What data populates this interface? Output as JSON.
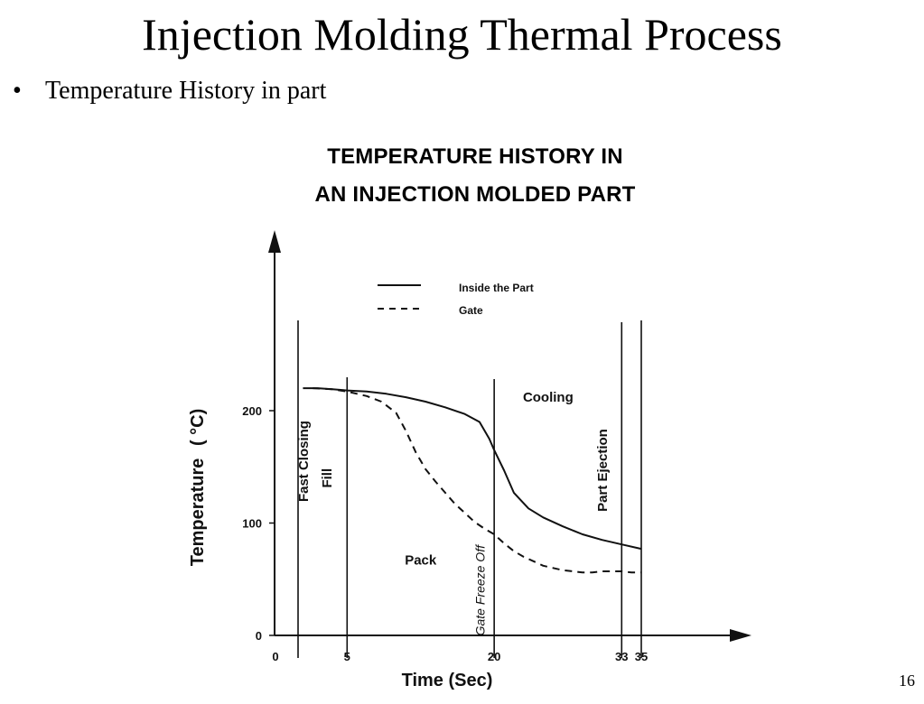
{
  "slide": {
    "title": "Injection Molding Thermal Process",
    "bullet": "Temperature History in part",
    "bullet_symbol": "•",
    "page_number": "16"
  },
  "chart_data": {
    "type": "line",
    "title_line1": "TEMPERATURE HISTORY IN",
    "title_line2": "AN INJECTION MOLDED PART",
    "xlabel": "Time (Sec)",
    "ylabel": "Temperature",
    "ylabel_unit": "( °C)",
    "xlim": [
      0,
      35
    ],
    "ylim": [
      0,
      260
    ],
    "x_ticks": [
      {
        "value": 0,
        "label": "0"
      },
      {
        "value": 5,
        "label": "5"
      },
      {
        "value": 20,
        "label": "20"
      },
      {
        "value": 33,
        "label": "33"
      },
      {
        "value": 35,
        "label": "35"
      }
    ],
    "y_ticks": [
      {
        "value": 0,
        "label": "0"
      },
      {
        "value": 100,
        "label": "100"
      },
      {
        "value": 200,
        "label": "200"
      }
    ],
    "grid": false,
    "legend_position": "top-center",
    "series": [
      {
        "name": "Inside the Part",
        "style": "solid",
        "x": [
          0.5,
          2,
          3.5,
          5,
          7,
          9,
          11,
          13,
          15,
          17,
          18.5,
          19.5,
          20,
          21,
          22,
          23.5,
          25,
          27,
          29,
          31,
          33,
          35
        ],
        "y": [
          220,
          220,
          219,
          218,
          217,
          215,
          212,
          208,
          203,
          197,
          190,
          175,
          165,
          147,
          127,
          113,
          105,
          97,
          90,
          85,
          81,
          77
        ]
      },
      {
        "name": "Gate",
        "style": "dashed",
        "x": [
          1.5,
          3.5,
          5,
          7,
          8.5,
          10,
          11,
          12,
          13,
          14,
          15,
          16,
          17,
          18,
          19,
          20,
          21,
          22,
          23,
          24,
          25,
          26,
          27,
          28,
          29,
          30,
          31,
          32,
          33,
          34,
          35
        ],
        "y": [
          220,
          219,
          217,
          213,
          208,
          198,
          182,
          163,
          148,
          137,
          127,
          117,
          109,
          101,
          95,
          90,
          82,
          75,
          70,
          66,
          62,
          60,
          58,
          57,
          56,
          56,
          57,
          57,
          57,
          56,
          56
        ]
      }
    ],
    "phase_lines": [
      {
        "x": 0
      },
      {
        "x": 5
      },
      {
        "x": 20
      },
      {
        "x": 33
      },
      {
        "x": 35
      }
    ],
    "annotations": [
      {
        "text": "Fast Closing",
        "x": 1,
        "y": 155,
        "rotate": -90
      },
      {
        "text": "Fill",
        "x": 3.4,
        "y": 140,
        "rotate": -90
      },
      {
        "text": "Pack",
        "x": 12.5,
        "y": 63,
        "rotate": 0
      },
      {
        "text": "Gate Freeze Off",
        "x": 19,
        "y": 40,
        "rotate": -90
      },
      {
        "text": "Cooling",
        "x": 25.5,
        "y": 208,
        "rotate": 0
      },
      {
        "text": "Part Ejection",
        "x": 31.5,
        "y": 147,
        "rotate": -90
      }
    ]
  }
}
